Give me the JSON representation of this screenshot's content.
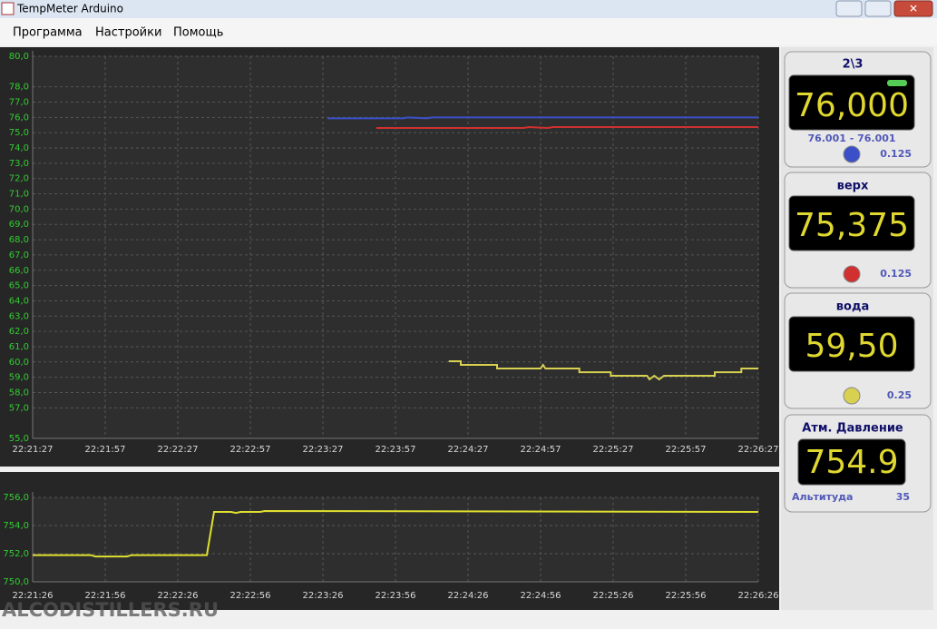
{
  "window": {
    "title": "TempMeter Arduino"
  },
  "menu": [
    "Программа",
    "Настройки",
    "Помощь"
  ],
  "chart_data": [
    {
      "type": "line",
      "grid": true,
      "xlim": [
        "22:21:27",
        "22:26:27"
      ],
      "xticks": [
        "22:21:27",
        "22:21:57",
        "22:22:27",
        "22:22:57",
        "22:23:27",
        "22:23:57",
        "22:24:27",
        "22:24:57",
        "22:25:27",
        "22:25:57",
        "22:26:27"
      ],
      "ylim": [
        55,
        80
      ],
      "yticks": [
        {
          "value": 55,
          "label": "55,0"
        },
        {
          "value": 57,
          "label": "57,0"
        },
        {
          "value": 58,
          "label": "58,0"
        },
        {
          "value": 59,
          "label": "59,0"
        },
        {
          "value": 60,
          "label": "60,0"
        },
        {
          "value": 61,
          "label": "61,0"
        },
        {
          "value": 62,
          "label": "62,0"
        },
        {
          "value": 63,
          "label": "63,0"
        },
        {
          "value": 64,
          "label": "64,0"
        },
        {
          "value": 65,
          "label": "65,0"
        },
        {
          "value": 66,
          "label": "66,0"
        },
        {
          "value": 67,
          "label": "67,0"
        },
        {
          "value": 68,
          "label": "68,0"
        },
        {
          "value": 69,
          "label": "69,0"
        },
        {
          "value": 70,
          "label": "70,0"
        },
        {
          "value": 71,
          "label": "71,0"
        },
        {
          "value": 72,
          "label": "72,0"
        },
        {
          "value": 73,
          "label": "73,0"
        },
        {
          "value": 74,
          "label": "74,0"
        },
        {
          "value": 75,
          "label": "75,0"
        },
        {
          "value": 76,
          "label": "76,0"
        },
        {
          "value": 77,
          "label": "77,0"
        },
        {
          "value": 78,
          "label": "78,0"
        },
        {
          "value": 80,
          "label": "80,0"
        }
      ],
      "series": [
        {
          "name": "2\\3",
          "color": "#3b50c8",
          "x": [
            "22:23:29",
            "22:24:00",
            "22:24:02",
            "22:24:10",
            "22:24:12",
            "22:24:27",
            "22:26:27"
          ],
          "values": [
            75.94,
            75.94,
            76.0,
            75.94,
            76.0,
            76.0,
            76.0
          ]
        },
        {
          "name": "верх",
          "color": "#d03030",
          "x": [
            "22:23:49",
            "22:24:50",
            "22:24:52",
            "22:25:00",
            "22:25:02",
            "22:26:27"
          ],
          "values": [
            75.31,
            75.31,
            75.37,
            75.31,
            75.37,
            75.37
          ]
        },
        {
          "name": "вода",
          "color": "#d8d050",
          "x": [
            "22:24:19",
            "22:24:24",
            "22:24:24",
            "22:24:39",
            "22:24:39",
            "22:24:57",
            "22:24:58",
            "22:24:59",
            "22:25:13",
            "22:25:13",
            "22:25:26",
            "22:25:26",
            "22:25:41",
            "22:25:42",
            "22:25:44",
            "22:25:46",
            "22:25:48",
            "22:26:09",
            "22:26:09",
            "22:26:20",
            "22:26:20",
            "22:26:27"
          ],
          "values": [
            60.05,
            60.05,
            59.81,
            59.81,
            59.57,
            59.57,
            59.81,
            59.57,
            59.57,
            59.33,
            59.33,
            59.1,
            59.1,
            58.86,
            59.1,
            58.86,
            59.1,
            59.1,
            59.33,
            59.33,
            59.57,
            59.57
          ]
        }
      ]
    },
    {
      "type": "line",
      "grid": true,
      "xlim": [
        "22:21:26",
        "22:26:26"
      ],
      "xticks": [
        "22:21:26",
        "22:21:56",
        "22:22:26",
        "22:22:56",
        "22:23:26",
        "22:23:56",
        "22:24:26",
        "22:24:56",
        "22:25:26",
        "22:25:56",
        "22:26:26"
      ],
      "ylim": [
        750,
        756
      ],
      "yticks": [
        {
          "value": 750,
          "label": "750,0"
        },
        {
          "value": 752,
          "label": "752,0"
        },
        {
          "value": 754,
          "label": "754,0"
        },
        {
          "value": 756,
          "label": "756,0"
        }
      ],
      "series": [
        {
          "name": "Атм. Давление",
          "color": "#e0e030",
          "x": [
            "22:21:26",
            "22:21:50",
            "22:21:52",
            "22:22:05",
            "22:22:07",
            "22:22:35",
            "22:22:38",
            "22:22:41",
            "22:22:48",
            "22:22:50",
            "22:22:52",
            "22:23:00",
            "22:23:02",
            "22:26:26"
          ],
          "values": [
            751.9,
            751.9,
            751.8,
            751.8,
            751.9,
            751.9,
            751.9,
            754.97,
            754.97,
            754.9,
            754.97,
            754.97,
            755.03,
            754.97
          ]
        }
      ]
    }
  ],
  "panels": [
    {
      "value": "76,000",
      "range": "76.001 - 76.001",
      "step": "0.125"
    },
    {
      "value": "75,375",
      "step": "0.125"
    },
    {
      "value": "59,50",
      "step": "0.25"
    },
    {
      "value": "754.9",
      "label": "Альтитуда",
      "altitude": "35"
    }
  ],
  "watermark": "ALCODISTILLERS.RU"
}
